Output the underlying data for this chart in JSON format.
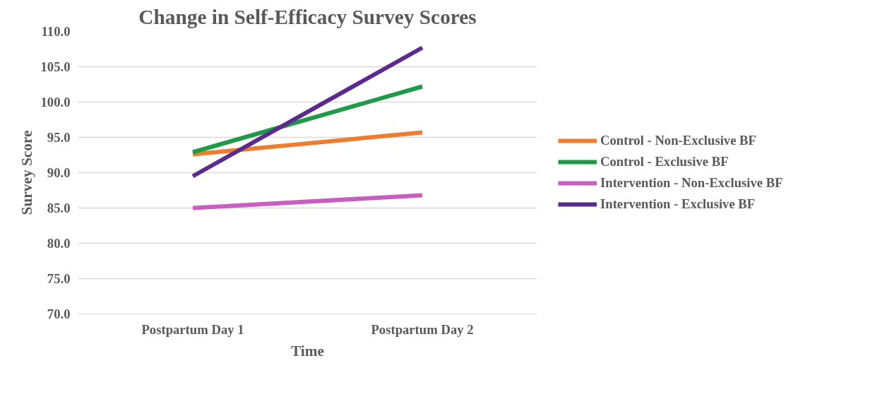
{
  "chart_data": {
    "type": "line",
    "title": "Change in Self-Efficacy Survey Scores",
    "xlabel": "Time",
    "ylabel": "Survey Score",
    "categories": [
      "Postpartum Day 1",
      "Postpartum Day 2"
    ],
    "series": [
      {
        "name": "Control - Non-Exclusive BF",
        "color": "#ed7d31",
        "values": [
          92.6,
          95.7
        ]
      },
      {
        "name": "Control - Exclusive BF",
        "color": "#1f9a48",
        "values": [
          92.9,
          102.2
        ]
      },
      {
        "name": "Intervention - Non-Exclusive BF",
        "color": "#c85fc0",
        "values": [
          85.0,
          86.8
        ]
      },
      {
        "name": "Intervention - Exclusive BF",
        "color": "#5b2a8c",
        "values": [
          89.5,
          107.7
        ]
      }
    ],
    "ylim": [
      70,
      110
    ],
    "yticks": [
      {
        "value": 70,
        "label": "70.0"
      },
      {
        "value": 75,
        "label": "75.0"
      },
      {
        "value": 80,
        "label": "80.0"
      },
      {
        "value": 85,
        "label": "85.0"
      },
      {
        "value": 90,
        "label": "90.0"
      },
      {
        "value": 95,
        "label": "95.0"
      },
      {
        "value": 100,
        "label": "100.0"
      },
      {
        "value": 105,
        "label": "105.0"
      },
      {
        "value": 110,
        "label": "110.0"
      }
    ],
    "grid": "y",
    "legend": "right",
    "marker": "none",
    "line_style": "solid"
  }
}
